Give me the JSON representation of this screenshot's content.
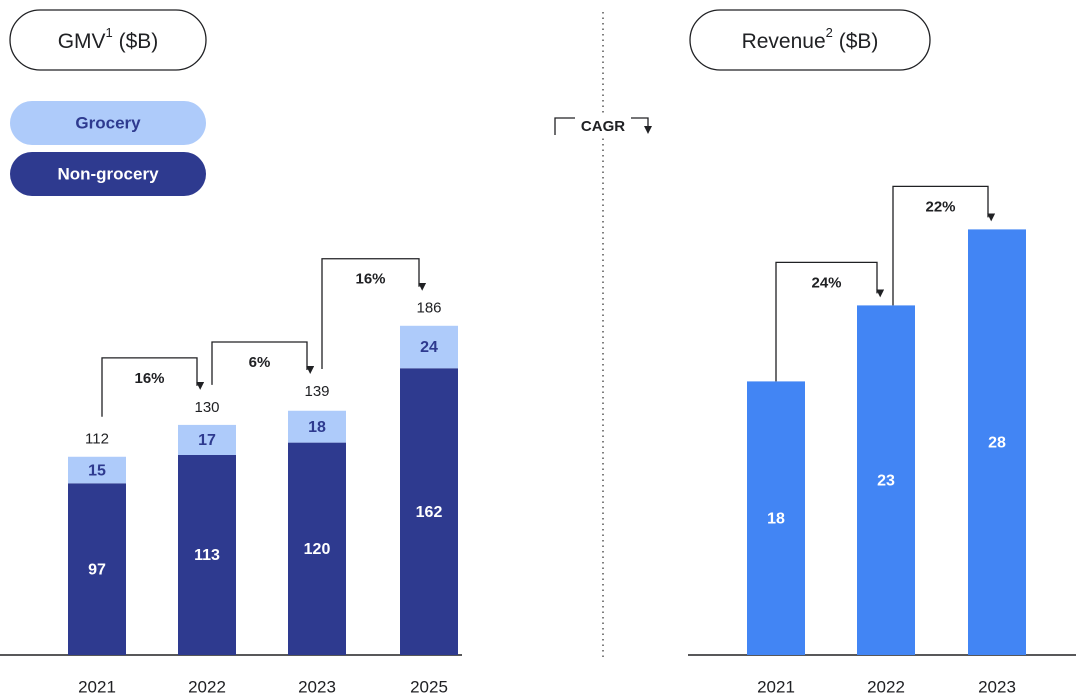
{
  "cagr_legend": "CAGR",
  "chart_data": [
    {
      "type": "stacked_bar",
      "title": "GMV",
      "title_note": "1",
      "title_unit": "($B)",
      "categories": [
        "2021",
        "2022",
        "2023",
        "2025"
      ],
      "series": [
        {
          "name": "Non-grocery",
          "color": "#2e3a8f",
          "values": [
            97,
            113,
            120,
            162
          ]
        },
        {
          "name": "Grocery",
          "color": "#aecbfa",
          "values": [
            15,
            17,
            18,
            24
          ]
        }
      ],
      "totals": [
        112,
        130,
        139,
        186
      ],
      "cagr": [
        {
          "value": 16,
          "label": "16%"
        },
        {
          "value": 6,
          "label": "6%"
        },
        {
          "value": 16,
          "label": "16%"
        }
      ],
      "ylim": [
        0,
        200
      ]
    },
    {
      "type": "bar",
      "title": "Revenue",
      "title_note": "2",
      "title_unit": "($B)",
      "categories": [
        "2021",
        "2022",
        "2023"
      ],
      "values": [
        18,
        23,
        28
      ],
      "color": "#4285f4",
      "cagr": [
        {
          "value": 24,
          "label": "24%"
        },
        {
          "value": 22,
          "label": "22%"
        }
      ],
      "ylim": [
        0,
        30
      ]
    }
  ]
}
